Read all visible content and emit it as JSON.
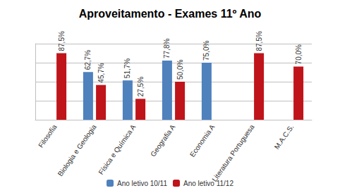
{
  "chart_data": {
    "type": "bar",
    "title": "Aproveitamento - Exames 11º Ano",
    "categories": [
      "Filosofia",
      "Biologia e Geologia",
      "Física e Química A",
      "Geografia A",
      "Economia A",
      "Literatura Portuguesa",
      "M.A.C.S."
    ],
    "series": [
      {
        "name": "Ano letivo 10/11",
        "color": "#4f81bd",
        "values": [
          0,
          62.7,
          51.7,
          77.8,
          75.0,
          0,
          0
        ],
        "value_labels": [
          null,
          "62,7%",
          "51,7%",
          "77,8%",
          "75,0%",
          null,
          null
        ]
      },
      {
        "name": "Ano letivo 11/12",
        "color": "#c0141b",
        "values": [
          87.5,
          45.7,
          27.5,
          50.0,
          0,
          87.5,
          70.0
        ],
        "value_labels": [
          "87,5%",
          "45,7%",
          "27,5%",
          "50,0%",
          null,
          "87,5%",
          "70,0%"
        ]
      }
    ],
    "ylim": [
      0,
      100
    ],
    "yticks": [
      0,
      25,
      50,
      75,
      100
    ],
    "grid": true,
    "legend": "bottom",
    "data_labels": true,
    "tick_labels": "x"
  }
}
